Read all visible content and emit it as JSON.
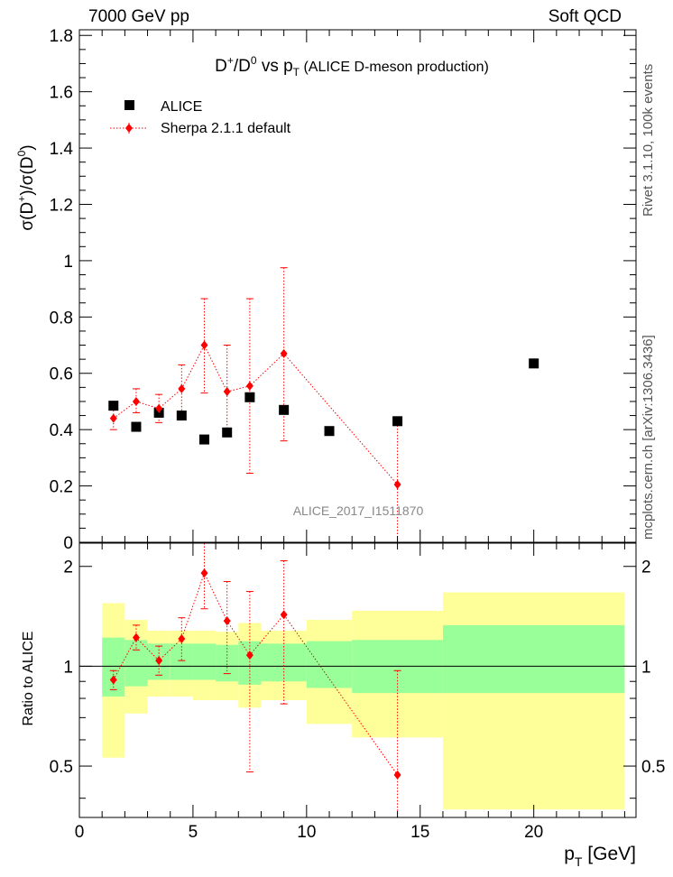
{
  "header": {
    "energy_label": "7000 GeV pp",
    "process_label": "Soft QCD"
  },
  "side_labels": {
    "rivet": "Rivet 3.1.10,  100k events",
    "mcplots": "mcplots.cern.ch [arXiv:1306.3436]"
  },
  "chart_data": [
    {
      "type": "scatter",
      "title": "D+/D0 vs pT (ALICE D-meson production)",
      "title_parts": {
        "a": "D",
        "a_sup": "+",
        "b": "/D",
        "b_sup": "0",
        "c": " vs p",
        "c_sub": "T",
        "d": " (ALICE D-meson production)"
      },
      "ylabel_parts": {
        "a": "σ(D",
        "a_sup": "+",
        "b": ")/σ(D",
        "b_sup": "0",
        "c": ")"
      },
      "watermark": "ALICE_2017_I1511870",
      "xlim": [
        0,
        24.5
      ],
      "ylim": [
        0,
        1.82
      ],
      "y_ticks": [
        "0",
        "0.2",
        "0.4",
        "0.6",
        "0.8",
        "1",
        "1.2",
        "1.4",
        "1.6",
        "1.8"
      ],
      "legend_position": "top-left",
      "series": [
        {
          "name": "ALICE",
          "marker": "square",
          "color": "#000000",
          "x": [
            1.5,
            2.5,
            3.5,
            4.5,
            5.5,
            6.5,
            7.5,
            9.0,
            11.0,
            14.0,
            20.0
          ],
          "y": [
            0.485,
            0.41,
            0.46,
            0.45,
            0.365,
            0.39,
            0.515,
            0.47,
            0.395,
            0.43,
            0.635
          ]
        },
        {
          "name": "Sherpa 2.1.1 default",
          "marker": "diamond",
          "color": "#ff0000",
          "line": "dotted",
          "x": [
            1.5,
            2.5,
            3.5,
            4.5,
            5.5,
            6.5,
            7.5,
            9.0,
            14.0
          ],
          "y": [
            0.44,
            0.5,
            0.475,
            0.545,
            0.7,
            0.535,
            0.555,
            0.67,
            0.205
          ],
          "err_low": [
            0.04,
            0.04,
            0.05,
            0.08,
            0.17,
            0.16,
            0.31,
            0.31,
            0.21
          ],
          "err_high": [
            0.04,
            0.045,
            0.05,
            0.085,
            0.165,
            0.165,
            0.31,
            0.305,
            0.21
          ]
        }
      ]
    },
    {
      "type": "scatter",
      "ylabel": "Ratio to ALICE",
      "xlabel_parts": {
        "a": "p",
        "a_sub": "T",
        "b": " [GeV]"
      },
      "xlim": [
        0,
        24.5
      ],
      "ylim": [
        0.35,
        2.35
      ],
      "x_ticks": [
        "0",
        "5",
        "10",
        "15",
        "20"
      ],
      "y_ticks": [
        "0.5",
        "1",
        "2"
      ],
      "y_tick_values": [
        0.5,
        1,
        2
      ],
      "bands": {
        "edges": [
          1,
          2,
          3,
          4,
          5,
          6,
          7,
          8,
          10,
          12,
          16,
          24
        ],
        "green_low": [
          0.81,
          0.87,
          0.91,
          0.91,
          0.91,
          0.9,
          0.88,
          0.9,
          0.86,
          0.83,
          0.83
        ],
        "green_high": [
          1.22,
          1.2,
          1.17,
          1.17,
          1.17,
          1.16,
          1.19,
          1.17,
          1.19,
          1.2,
          1.33
        ],
        "yellow_low": [
          0.53,
          0.72,
          0.81,
          0.81,
          0.79,
          0.79,
          0.75,
          0.79,
          0.67,
          0.61,
          0.37
        ],
        "yellow_high": [
          1.55,
          1.38,
          1.28,
          1.28,
          1.28,
          1.27,
          1.35,
          1.28,
          1.38,
          1.47,
          1.67
        ],
        "green_color": "#99ff99",
        "yellow_color": "#ffff99"
      },
      "series": [
        {
          "name": "Sherpa 2.1.1 default / ALICE",
          "color": "#ff0000",
          "x": [
            1.5,
            2.5,
            3.5,
            4.5,
            5.5,
            6.5,
            7.5,
            9.0,
            14.0
          ],
          "y": [
            0.91,
            1.22,
            1.04,
            1.21,
            1.91,
            1.37,
            1.08,
            1.43,
            0.47
          ],
          "err_low": [
            0.06,
            0.1,
            0.1,
            0.17,
            0.42,
            0.42,
            0.6,
            0.66,
            0.47
          ],
          "err_high": [
            0.06,
            0.11,
            0.11,
            0.19,
            0.45,
            0.43,
            0.6,
            0.65,
            0.5
          ]
        }
      ]
    }
  ]
}
